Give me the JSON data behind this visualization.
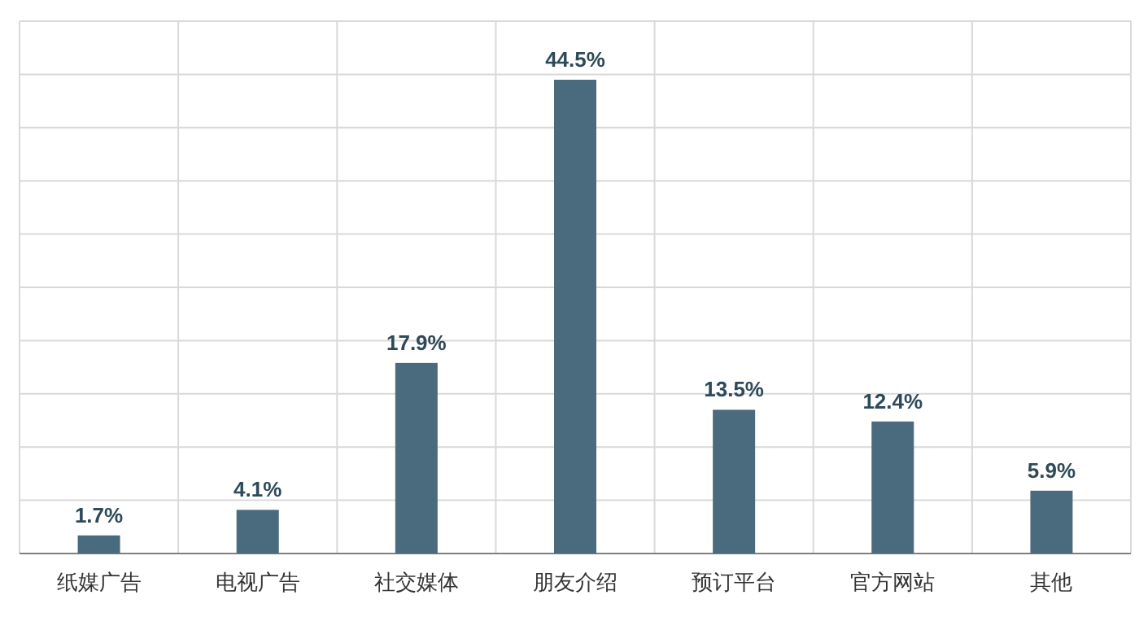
{
  "chart_data": {
    "type": "bar",
    "categories": [
      "纸媒广告",
      "电视广告",
      "社交媒体",
      "朋友介绍",
      "预订平台",
      "官方网站",
      "其他"
    ],
    "values": [
      1.7,
      4.1,
      17.9,
      44.5,
      13.5,
      12.4,
      5.9
    ],
    "value_labels": [
      "1.7%",
      "4.1%",
      "17.9%",
      "44.5%",
      "13.5%",
      "12.4%",
      "5.9%"
    ],
    "color": "#4a6a7e",
    "ylim": [
      0,
      50
    ],
    "yticks": [
      {
        "value": 0,
        "label": null
      },
      {
        "value": 5,
        "label": null
      },
      {
        "value": 10,
        "label": null
      },
      {
        "value": 15,
        "label": null
      },
      {
        "value": 20,
        "label": null
      },
      {
        "value": 25,
        "label": null
      },
      {
        "value": 30,
        "label": null
      },
      {
        "value": 35,
        "label": null
      },
      {
        "value": 40,
        "label": null
      },
      {
        "value": 45,
        "label": null
      },
      {
        "value": 50,
        "label": null
      }
    ],
    "tick_labels": "x",
    "grid": true
  }
}
